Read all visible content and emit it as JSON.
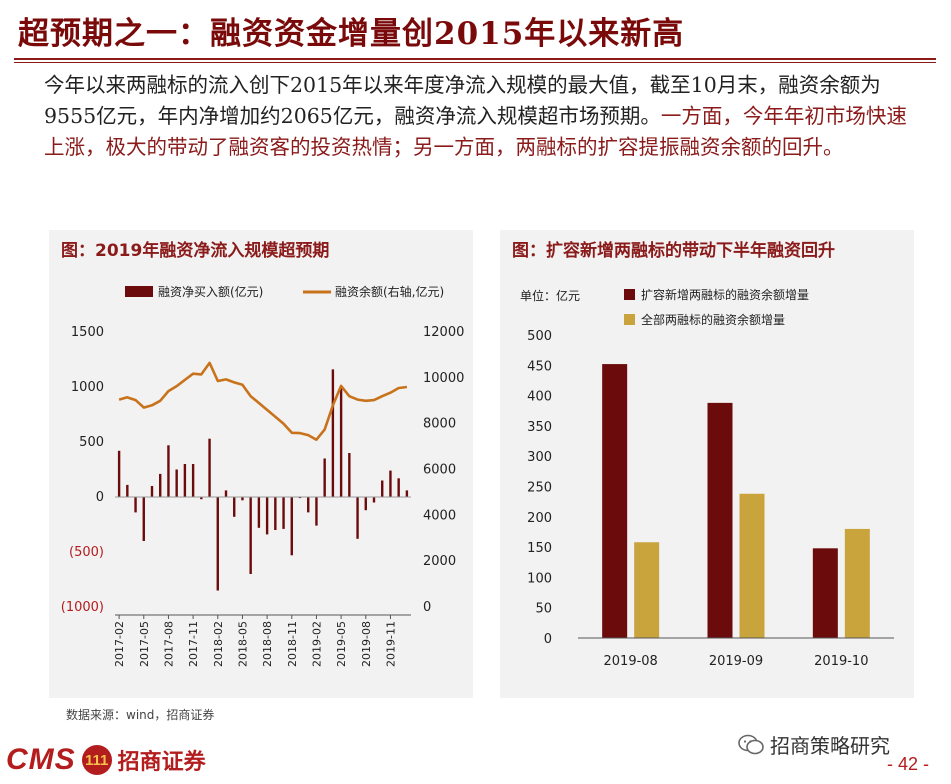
{
  "header": {
    "title": "超预期之一：融资资金增量创2015年以来新高"
  },
  "summary": {
    "text_plain": "今年以来两融标的流入创下2015年以来年度净流入规模的最大值，截至10月末，融资余额为9555亿元，年内净增加约2065亿元，融资净流入规模超市场预期。",
    "text_highlight": "一方面，今年年初市场快速上涨，极大的带动了融资客的投资热情；另一方面，两融标的扩容提振融资余额的回升。"
  },
  "colors": {
    "title": "#7a0a0a",
    "bar_dark": "#6b0b0b",
    "line_orange": "#c8731c",
    "bar_gold": "#c9a43c",
    "panel_bg": "#f2f2f2"
  },
  "chart_data": [
    {
      "type": "bar+line",
      "title": "图：2019年融资净流入规模超预期",
      "legend": [
        "融资净买入额(亿元)",
        "融资余额(右轴,亿元)"
      ],
      "left_axis": {
        "ticks": [
          "1500",
          "1000",
          "500",
          "0",
          "(500)",
          "(1000)"
        ],
        "ylim": [
          -1000,
          1500
        ]
      },
      "right_axis": {
        "ticks": [
          "12000",
          "10000",
          "8000",
          "6000",
          "4000",
          "2000",
          "0"
        ],
        "ylim": [
          0,
          12000
        ]
      },
      "x_tick_labels": [
        "2017-02",
        "2017-05",
        "2017-08",
        "2017-11",
        "2018-02",
        "2018-05",
        "2018-08",
        "2018-11",
        "2019-02",
        "2019-05",
        "2019-08",
        "2019-11"
      ],
      "series": [
        {
          "name": "融资净买入额(亿元)",
          "axis": "left",
          "kind": "bar",
          "values": [
            420,
            110,
            -140,
            -400,
            100,
            210,
            470,
            250,
            300,
            300,
            -20,
            530,
            -850,
            60,
            -180,
            -30,
            -700,
            -280,
            -340,
            -300,
            -290,
            -530,
            -10,
            -140,
            -260,
            350,
            1160,
            1000,
            400,
            -380,
            -120,
            -50,
            150,
            240,
            170,
            60
          ]
        },
        {
          "name": "融资余额(右轴,亿元)",
          "axis": "right",
          "kind": "line",
          "values": [
            9050,
            9150,
            9030,
            8700,
            8800,
            9000,
            9420,
            9640,
            9910,
            10180,
            10150,
            10650,
            9860,
            9930,
            9800,
            9700,
            9200,
            8900,
            8600,
            8300,
            8000,
            7600,
            7590,
            7500,
            7300,
            7750,
            8800,
            9650,
            9200,
            9050,
            9000,
            9030,
            9200,
            9350,
            9555,
            9600
          ]
        }
      ]
    },
    {
      "type": "bar",
      "title": "图：扩容新增两融标的带动下半年融资回升",
      "unit_label": "单位：亿元",
      "categories": [
        "2019-08",
        "2019-09",
        "2019-10"
      ],
      "ylim": [
        0,
        500
      ],
      "y_ticks": [
        "500",
        "450",
        "400",
        "350",
        "300",
        "250",
        "200",
        "150",
        "100",
        "50",
        "0"
      ],
      "series": [
        {
          "name": "扩容新增两融标的融资余额增量",
          "values": [
            452,
            388,
            148
          ]
        },
        {
          "name": "全部两融标的融资余额增量",
          "values": [
            158,
            238,
            180
          ]
        }
      ]
    }
  ],
  "footer": {
    "source": "数据来源：wind，招商证券",
    "logo_cms": "CMS",
    "logo_badge": "111",
    "logo_cn": "招商证券",
    "wechat": "招商策略研究",
    "page": "- 42 -"
  }
}
